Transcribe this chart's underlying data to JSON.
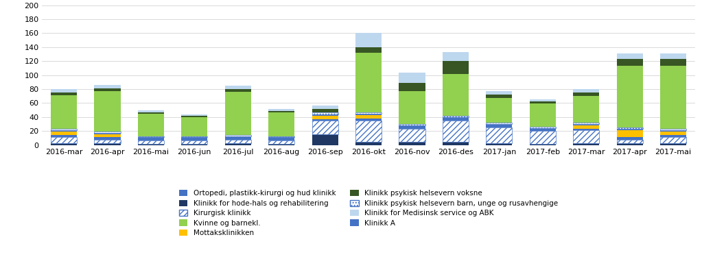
{
  "categories": [
    "2016-mar",
    "2016-apr",
    "2016-mai",
    "2016-jun",
    "2016-jul",
    "2016-aug",
    "2016-sep",
    "2016-okt",
    "2016-nov",
    "2016-des",
    "2017-jan",
    "2017-feb",
    "2017-mar",
    "2017-apr",
    "2017-mai"
  ],
  "hode_hals": [
    3,
    3,
    2,
    2,
    3,
    2,
    15,
    5,
    5,
    5,
    3,
    2,
    3,
    3,
    3
  ],
  "kirurgisk": [
    8,
    5,
    5,
    5,
    5,
    5,
    20,
    30,
    18,
    30,
    22,
    18,
    18,
    5,
    8
  ],
  "ortopedi": [
    3,
    3,
    2,
    2,
    2,
    2,
    2,
    3,
    3,
    3,
    3,
    2,
    2,
    3,
    3
  ],
  "mottaks": [
    5,
    4,
    0,
    0,
    0,
    0,
    5,
    5,
    0,
    0,
    0,
    0,
    5,
    10,
    5
  ],
  "klinikk_a": [
    2,
    2,
    2,
    2,
    2,
    2,
    2,
    2,
    2,
    2,
    2,
    2,
    2,
    2,
    2
  ],
  "psyk_barn": [
    2,
    2,
    1,
    1,
    2,
    1,
    3,
    2,
    2,
    2,
    2,
    2,
    2,
    2,
    2
  ],
  "kvinne": [
    48,
    58,
    33,
    28,
    62,
    35,
    0,
    85,
    47,
    60,
    35,
    33,
    38,
    88,
    90
  ],
  "psyk_voksne": [
    4,
    4,
    2,
    2,
    4,
    2,
    5,
    8,
    12,
    18,
    5,
    3,
    5,
    10,
    10
  ],
  "medisinsk": [
    5,
    5,
    3,
    2,
    5,
    3,
    5,
    20,
    15,
    13,
    5,
    3,
    5,
    8,
    8
  ],
  "ylim": [
    0,
    200
  ],
  "yticks": [
    0,
    20,
    40,
    60,
    80,
    100,
    120,
    140,
    160,
    180,
    200
  ],
  "figsize": [
    10.23,
    3.78
  ],
  "dpi": 100,
  "color_hode_hals": "#1F3864",
  "color_ortopedi": "#4472C4",
  "color_mottaks": "#FFC000",
  "color_klinikk_a": "#4472C4",
  "color_kvinne": "#92D050",
  "color_psyk_voksne": "#375623",
  "color_medisinsk": "#BDD7EE",
  "legend_labels_left": [
    "Ortopedi, plastikk-kirurgi og hud klinikk",
    "Kirurgisk klinikk",
    "Mottaksklinikken",
    "Klinikk psykisk helsevern barn, unge og rusavhengige",
    "Klinikk A"
  ],
  "legend_labels_right": [
    "Klinikk for hode-hals og rehabilitering",
    "Kvinne og barnekl.",
    "Klinikk psykisk helsevern voksne",
    "Klinikk for Medisinsk service og ABK"
  ]
}
